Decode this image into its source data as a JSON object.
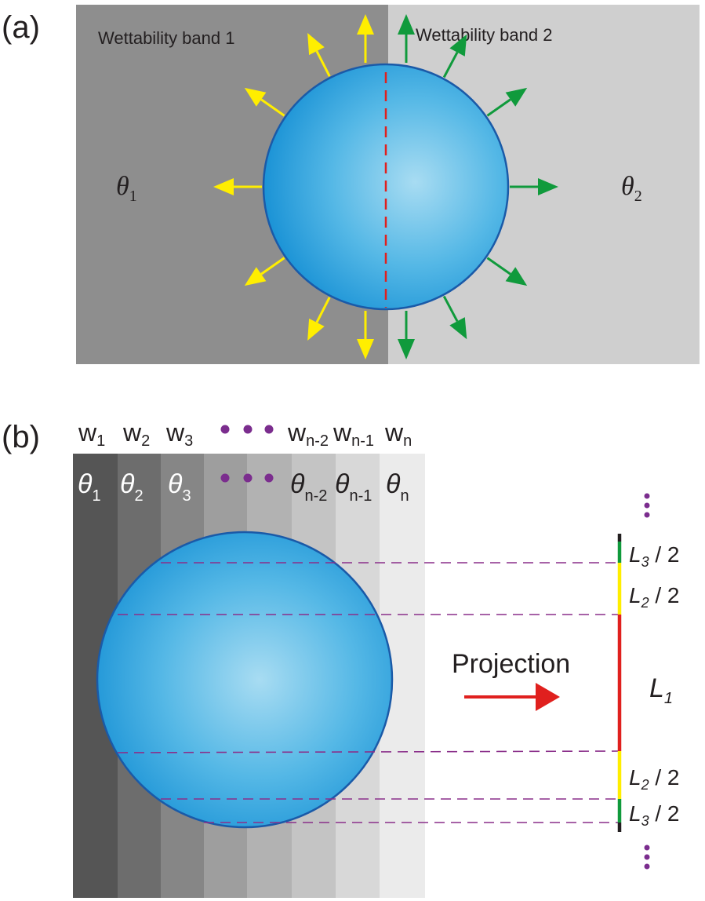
{
  "panel_a": {
    "label": "(a)",
    "band1_label": "Wettability band 1",
    "band2_label": "Wettability band 2",
    "theta1": {
      "symbol": "θ",
      "sub": "1"
    },
    "theta2": {
      "symbol": "θ",
      "sub": "2"
    },
    "colors": {
      "band1": "#8e8e8e",
      "band2": "#cfcfcf",
      "arrow_left": "#ffee00",
      "arrow_right": "#109a3c",
      "divider": "#e0201e"
    }
  },
  "panel_b": {
    "label": "(b)",
    "widths": [
      {
        "base": "w",
        "sub": "1"
      },
      {
        "base": "w",
        "sub": "2"
      },
      {
        "base": "w",
        "sub": "3"
      },
      {
        "base": "w",
        "sub": "n-2"
      },
      {
        "base": "w",
        "sub": "n-1"
      },
      {
        "base": "w",
        "sub": "n"
      }
    ],
    "thetas": [
      {
        "base": "θ",
        "sub": "1"
      },
      {
        "base": "θ",
        "sub": "2"
      },
      {
        "base": "θ",
        "sub": "3"
      },
      {
        "base": "θ",
        "sub": "n-2"
      },
      {
        "base": "θ",
        "sub": "n-1"
      },
      {
        "base": "θ",
        "sub": "n"
      }
    ],
    "projection_label": "Projection",
    "lengths": [
      {
        "base": "L",
        "sub": "3",
        "suffix": " / 2"
      },
      {
        "base": "L",
        "sub": "2",
        "suffix": " / 2"
      },
      {
        "base": "L",
        "sub": "1",
        "suffix": ""
      },
      {
        "base": "L",
        "sub": "2",
        "suffix": " / 2"
      },
      {
        "base": "L",
        "sub": "3",
        "suffix": " / 2"
      }
    ],
    "colors": {
      "dots": "#7b2d8e",
      "dashed": "#8a2f8a",
      "projection_arrow": "#e0201e",
      "seg_green": "#109a3c",
      "seg_yellow": "#ffee00",
      "seg_red": "#e0201e"
    }
  }
}
